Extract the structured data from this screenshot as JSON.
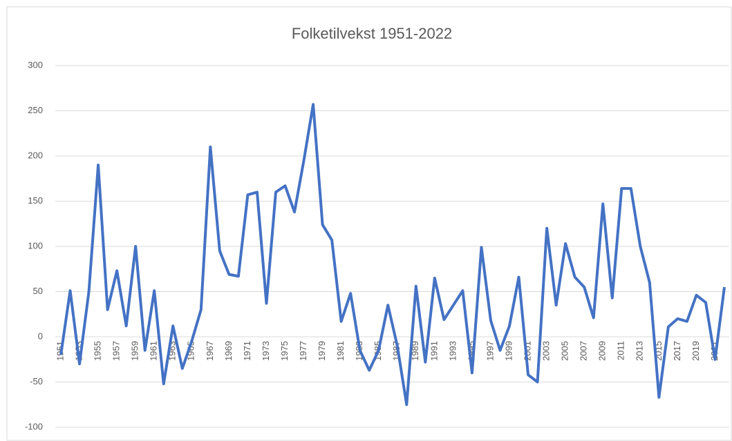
{
  "chart_data": {
    "type": "line",
    "title": "Folketilvekst 1951-2022",
    "categories": [
      "1951",
      null,
      "1953",
      null,
      "1955",
      null,
      "1957",
      null,
      "1959",
      null,
      "1961",
      null,
      "1963",
      null,
      "1965",
      null,
      "1967",
      null,
      "1969",
      null,
      "1971",
      null,
      "1973",
      null,
      "1975",
      null,
      "1977",
      null,
      "1979",
      null,
      "1981",
      null,
      "1983",
      null,
      "1985",
      null,
      "1987",
      null,
      "1989",
      null,
      "1991",
      null,
      "1993",
      null,
      "1995",
      null,
      "1997",
      null,
      "1999",
      null,
      "2001",
      null,
      "2003",
      null,
      "2005",
      null,
      "2007",
      null,
      "2009",
      null,
      "2011",
      null,
      "2013",
      null,
      "2015",
      null,
      "2017",
      null,
      "2019",
      null,
      "2021",
      null
    ],
    "series": [
      {
        "name": "Folketilvekst",
        "color": "#4472c4",
        "values": [
          -20,
          51,
          -30,
          50,
          190,
          30,
          73,
          12,
          100,
          -15,
          51,
          -52,
          12,
          -35,
          -5,
          30,
          210,
          95,
          69,
          67,
          157,
          160,
          37,
          160,
          167,
          138,
          195,
          257,
          124,
          107,
          17,
          48,
          -15,
          -37,
          -15,
          35,
          -10,
          -75,
          56,
          -28,
          65,
          19,
          35,
          51,
          -40,
          99,
          18,
          -15,
          12,
          66,
          -42,
          -50,
          120,
          35,
          103,
          66,
          55,
          21,
          147,
          43,
          164,
          164,
          100,
          60,
          -67,
          11,
          20,
          17,
          46,
          38,
          -25,
          55
        ]
      }
    ],
    "ylim": [
      -100,
      300
    ],
    "yticks": [
      -100,
      -50,
      0,
      50,
      100,
      150,
      200,
      250,
      300
    ],
    "grid": true
  }
}
